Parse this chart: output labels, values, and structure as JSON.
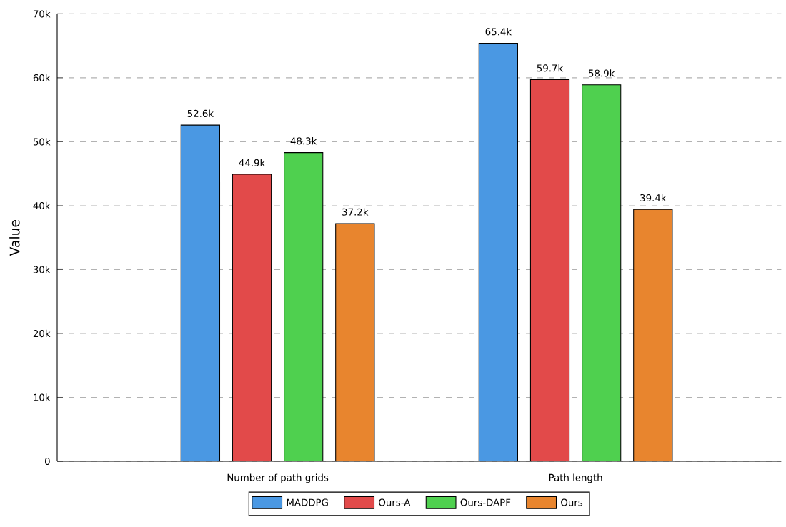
{
  "chart_data": {
    "type": "bar",
    "ylabel": "Value",
    "categories": [
      "Number of path grids",
      "Path length"
    ],
    "series": [
      {
        "name": "MADDPG",
        "color": "#4a98e3",
        "values": [
          52600,
          65400
        ],
        "value_labels": [
          "52.6k",
          "65.4k"
        ]
      },
      {
        "name": "Ours-A",
        "color": "#e24a4a",
        "values": [
          44900,
          59700
        ],
        "value_labels": [
          "44.9k",
          "59.7k"
        ]
      },
      {
        "name": "Ours-DAPF",
        "color": "#4fd04f",
        "values": [
          48300,
          58900
        ],
        "value_labels": [
          "48.3k",
          "58.9k"
        ]
      },
      {
        "name": "Ours",
        "color": "#e8852e",
        "values": [
          37200,
          39400
        ],
        "value_labels": [
          "37.2k",
          "39.4k"
        ]
      }
    ],
    "ylim": [
      0,
      70000
    ],
    "yticks": [
      0,
      {
        "value": 10000,
        "label": "10k"
      },
      {
        "value": 20000,
        "label": "20k"
      },
      {
        "value": 30000,
        "label": "30k"
      },
      {
        "value": 40000,
        "label": "40k"
      },
      {
        "value": 50000,
        "label": "50k"
      },
      {
        "value": 60000,
        "label": "60k"
      },
      {
        "value": 70000,
        "label": "70k"
      }
    ],
    "grid": "y",
    "legend": "bottom"
  }
}
